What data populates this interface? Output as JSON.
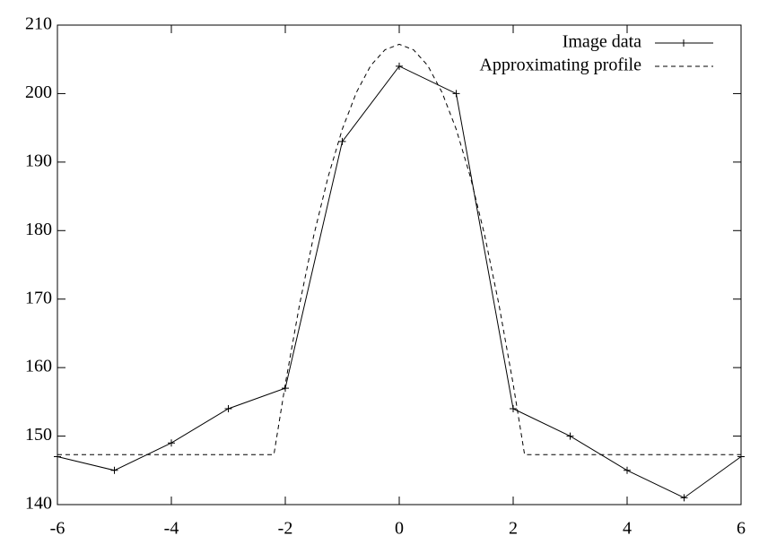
{
  "chart_data": {
    "type": "line",
    "xlim": [
      -6,
      6
    ],
    "xticks": [
      -6,
      -4,
      -2,
      0,
      2,
      4,
      6
    ],
    "ylim": [
      140,
      210
    ],
    "yticks": [
      140,
      150,
      160,
      170,
      180,
      190,
      200,
      210
    ],
    "legend": "top-right",
    "series": [
      {
        "name": "Image data",
        "color": "#000000",
        "dash": "solid",
        "marker": "plus",
        "x": [
          -6,
          -5,
          -4,
          -3,
          -2,
          -1,
          0,
          1,
          2,
          3,
          4,
          5,
          6
        ],
        "values": [
          147,
          145,
          149,
          154,
          157,
          193,
          204,
          200,
          154,
          150,
          145,
          141,
          147
        ]
      },
      {
        "name": "Approximating profile",
        "color": "#000000",
        "dash": "dashed",
        "marker": "none",
        "x": [
          -6,
          -2.2,
          -2,
          -1.75,
          -1.5,
          -1.25,
          -1,
          -0.75,
          -0.5,
          -0.25,
          0,
          0.25,
          0.5,
          0.75,
          1,
          1.25,
          1.5,
          1.75,
          2,
          2.2,
          6
        ],
        "values": [
          147.3,
          147.3,
          157.6,
          169.2,
          179.3,
          187.8,
          194.8,
          200.2,
          204.1,
          206.4,
          207.2,
          206.4,
          204.1,
          200.2,
          194.8,
          187.8,
          179.3,
          169.2,
          157.6,
          147.3,
          147.3
        ]
      }
    ]
  }
}
